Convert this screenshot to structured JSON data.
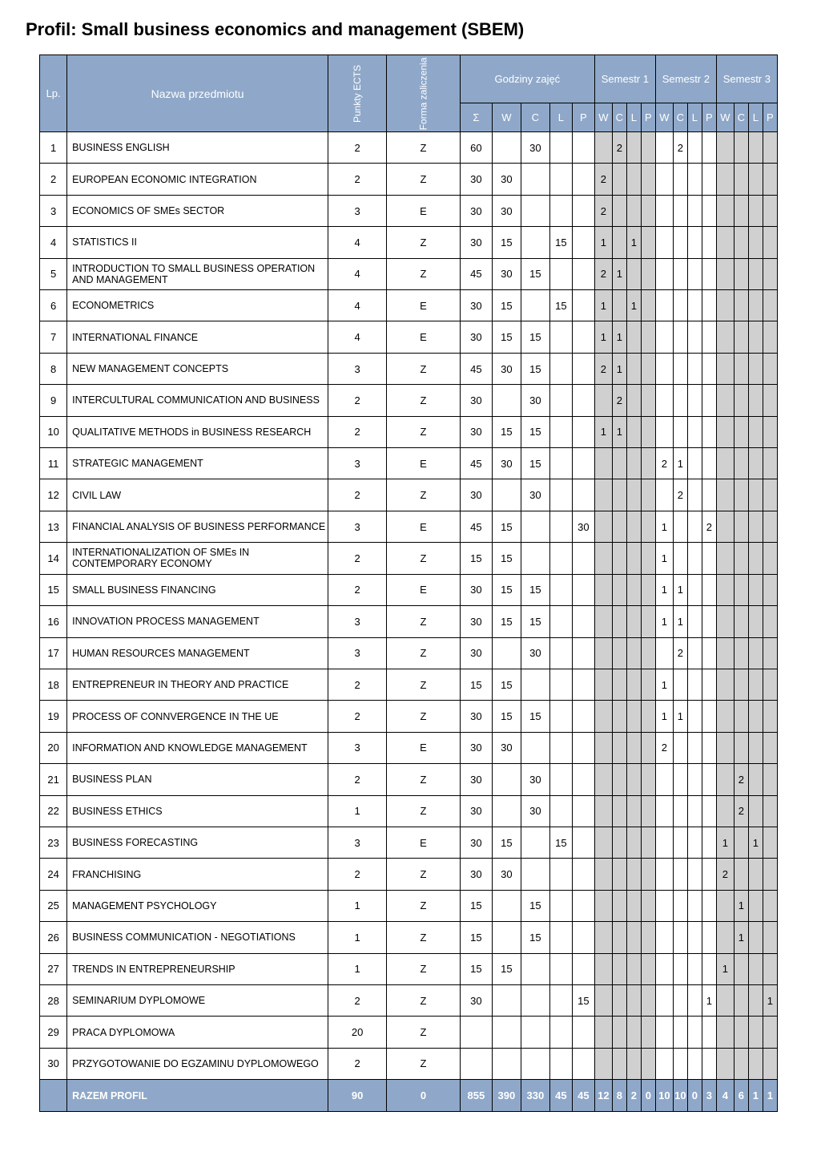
{
  "title": "Profil: Small business economics and management (SBEM)",
  "colors": {
    "header_bg": "#8fa8c9",
    "header_fg": "#ffffff",
    "sem1_bg": "#d0d0d0",
    "border": "#000000",
    "page_bg": "#ffffff"
  },
  "header": {
    "lp": "Lp.",
    "name": "Nazwa przedmiotu",
    "ects": "Punkty\nECTS",
    "form": "Forma\nzaliczenia",
    "hours": "Godziny zajęć",
    "sem1": "Semestr 1",
    "sem2": "Semestr 2",
    "sem3": "Semestr 3",
    "sub": {
      "S": "Σ",
      "W": "W",
      "C": "C",
      "L": "L",
      "P": "P"
    }
  },
  "rows": [
    {
      "lp": "1",
      "name": "BUSINESS ENGLISH",
      "ects": "2",
      "form": "Z",
      "g": {
        "S": "60",
        "W": "",
        "C": "30",
        "L": "",
        "P": ""
      },
      "s1": {
        "W": "",
        "C": "2",
        "L": "",
        "P": ""
      },
      "s2": {
        "W": "",
        "C": "2",
        "L": "",
        "P": ""
      },
      "s3": {
        "W": "",
        "C": "",
        "L": "",
        "P": ""
      }
    },
    {
      "lp": "2",
      "name": "EUROPEAN ECONOMIC INTEGRATION",
      "ects": "2",
      "form": "Z",
      "g": {
        "S": "30",
        "W": "30",
        "C": "",
        "L": "",
        "P": ""
      },
      "s1": {
        "W": "2",
        "C": "",
        "L": "",
        "P": ""
      },
      "s2": {
        "W": "",
        "C": "",
        "L": "",
        "P": ""
      },
      "s3": {
        "W": "",
        "C": "",
        "L": "",
        "P": ""
      }
    },
    {
      "lp": "3",
      "name": "ECONOMICS OF SMEs SECTOR",
      "ects": "3",
      "form": "E",
      "g": {
        "S": "30",
        "W": "30",
        "C": "",
        "L": "",
        "P": ""
      },
      "s1": {
        "W": "2",
        "C": "",
        "L": "",
        "P": ""
      },
      "s2": {
        "W": "",
        "C": "",
        "L": "",
        "P": ""
      },
      "s3": {
        "W": "",
        "C": "",
        "L": "",
        "P": ""
      }
    },
    {
      "lp": "4",
      "name": "STATISTICS II",
      "ects": "4",
      "form": "Z",
      "g": {
        "S": "30",
        "W": "15",
        "C": "",
        "L": "15",
        "P": ""
      },
      "s1": {
        "W": "1",
        "C": "",
        "L": "1",
        "P": ""
      },
      "s2": {
        "W": "",
        "C": "",
        "L": "",
        "P": ""
      },
      "s3": {
        "W": "",
        "C": "",
        "L": "",
        "P": ""
      }
    },
    {
      "lp": "5",
      "name": "INTRODUCTION TO SMALL BUSINESS OPERATION AND MANAGEMENT",
      "ects": "4",
      "form": "Z",
      "g": {
        "S": "45",
        "W": "30",
        "C": "15",
        "L": "",
        "P": ""
      },
      "s1": {
        "W": "2",
        "C": "1",
        "L": "",
        "P": ""
      },
      "s2": {
        "W": "",
        "C": "",
        "L": "",
        "P": ""
      },
      "s3": {
        "W": "",
        "C": "",
        "L": "",
        "P": ""
      }
    },
    {
      "lp": "6",
      "name": "ECONOMETRICS",
      "ects": "4",
      "form": "E",
      "g": {
        "S": "30",
        "W": "15",
        "C": "",
        "L": "15",
        "P": ""
      },
      "s1": {
        "W": "1",
        "C": "",
        "L": "1",
        "P": ""
      },
      "s2": {
        "W": "",
        "C": "",
        "L": "",
        "P": ""
      },
      "s3": {
        "W": "",
        "C": "",
        "L": "",
        "P": ""
      }
    },
    {
      "lp": "7",
      "name": "INTERNATIONAL FINANCE",
      "ects": "4",
      "form": "E",
      "g": {
        "S": "30",
        "W": "15",
        "C": "15",
        "L": "",
        "P": ""
      },
      "s1": {
        "W": "1",
        "C": "1",
        "L": "",
        "P": ""
      },
      "s2": {
        "W": "",
        "C": "",
        "L": "",
        "P": ""
      },
      "s3": {
        "W": "",
        "C": "",
        "L": "",
        "P": ""
      }
    },
    {
      "lp": "8",
      "name": "NEW MANAGEMENT CONCEPTS",
      "ects": "3",
      "form": "Z",
      "g": {
        "S": "45",
        "W": "30",
        "C": "15",
        "L": "",
        "P": ""
      },
      "s1": {
        "W": "2",
        "C": "1",
        "L": "",
        "P": ""
      },
      "s2": {
        "W": "",
        "C": "",
        "L": "",
        "P": ""
      },
      "s3": {
        "W": "",
        "C": "",
        "L": "",
        "P": ""
      }
    },
    {
      "lp": "9",
      "name": "INTERCULTURAL COMMUNICATION AND BUSINESS",
      "ects": "2",
      "form": "Z",
      "g": {
        "S": "30",
        "W": "",
        "C": "30",
        "L": "",
        "P": ""
      },
      "s1": {
        "W": "",
        "C": "2",
        "L": "",
        "P": ""
      },
      "s2": {
        "W": "",
        "C": "",
        "L": "",
        "P": ""
      },
      "s3": {
        "W": "",
        "C": "",
        "L": "",
        "P": ""
      }
    },
    {
      "lp": "10",
      "name": "QUALITATIVE METHODS in BUSINESS RESEARCH",
      "ects": "2",
      "form": "Z",
      "g": {
        "S": "30",
        "W": "15",
        "C": "15",
        "L": "",
        "P": ""
      },
      "s1": {
        "W": "1",
        "C": "1",
        "L": "",
        "P": ""
      },
      "s2": {
        "W": "",
        "C": "",
        "L": "",
        "P": ""
      },
      "s3": {
        "W": "",
        "C": "",
        "L": "",
        "P": ""
      }
    },
    {
      "lp": "11",
      "name": "STRATEGIC MANAGEMENT",
      "ects": "3",
      "form": "E",
      "g": {
        "S": "45",
        "W": "30",
        "C": "15",
        "L": "",
        "P": ""
      },
      "s1": {
        "W": "",
        "C": "",
        "L": "",
        "P": ""
      },
      "s2": {
        "W": "2",
        "C": "1",
        "L": "",
        "P": ""
      },
      "s3": {
        "W": "",
        "C": "",
        "L": "",
        "P": ""
      }
    },
    {
      "lp": "12",
      "name": "CIVIL LAW",
      "ects": "2",
      "form": "Z",
      "g": {
        "S": "30",
        "W": "",
        "C": "30",
        "L": "",
        "P": ""
      },
      "s1": {
        "W": "",
        "C": "",
        "L": "",
        "P": ""
      },
      "s2": {
        "W": "",
        "C": "2",
        "L": "",
        "P": ""
      },
      "s3": {
        "W": "",
        "C": "",
        "L": "",
        "P": ""
      }
    },
    {
      "lp": "13",
      "name": "FINANCIAL ANALYSIS OF BUSINESS PERFORMANCE",
      "ects": "3",
      "form": "E",
      "g": {
        "S": "45",
        "W": "15",
        "C": "",
        "L": "",
        "P": "30"
      },
      "s1": {
        "W": "",
        "C": "",
        "L": "",
        "P": ""
      },
      "s2": {
        "W": "1",
        "C": "",
        "L": "",
        "P": "2"
      },
      "s3": {
        "W": "",
        "C": "",
        "L": "",
        "P": ""
      }
    },
    {
      "lp": "14",
      "name": "INTERNATIONALIZATION OF SMEs IN CONTEMPORARY ECONOMY",
      "ects": "2",
      "form": "Z",
      "g": {
        "S": "15",
        "W": "15",
        "C": "",
        "L": "",
        "P": ""
      },
      "s1": {
        "W": "",
        "C": "",
        "L": "",
        "P": ""
      },
      "s2": {
        "W": "1",
        "C": "",
        "L": "",
        "P": ""
      },
      "s3": {
        "W": "",
        "C": "",
        "L": "",
        "P": ""
      }
    },
    {
      "lp": "15",
      "name": "SMALL BUSINESS FINANCING",
      "ects": "2",
      "form": "E",
      "g": {
        "S": "30",
        "W": "15",
        "C": "15",
        "L": "",
        "P": ""
      },
      "s1": {
        "W": "",
        "C": "",
        "L": "",
        "P": ""
      },
      "s2": {
        "W": "1",
        "C": "1",
        "L": "",
        "P": ""
      },
      "s3": {
        "W": "",
        "C": "",
        "L": "",
        "P": ""
      }
    },
    {
      "lp": "16",
      "name": "INNOVATION PROCESS MANAGEMENT",
      "ects": "3",
      "form": "Z",
      "g": {
        "S": "30",
        "W": "15",
        "C": "15",
        "L": "",
        "P": ""
      },
      "s1": {
        "W": "",
        "C": "",
        "L": "",
        "P": ""
      },
      "s2": {
        "W": "1",
        "C": "1",
        "L": "",
        "P": ""
      },
      "s3": {
        "W": "",
        "C": "",
        "L": "",
        "P": ""
      }
    },
    {
      "lp": "17",
      "name": "HUMAN RESOURCES MANAGEMENT",
      "ects": "3",
      "form": "Z",
      "g": {
        "S": "30",
        "W": "",
        "C": "30",
        "L": "",
        "P": ""
      },
      "s1": {
        "W": "",
        "C": "",
        "L": "",
        "P": ""
      },
      "s2": {
        "W": "",
        "C": "2",
        "L": "",
        "P": ""
      },
      "s3": {
        "W": "",
        "C": "",
        "L": "",
        "P": ""
      }
    },
    {
      "lp": "18",
      "name": "ENTREPRENEUR IN THEORY AND PRACTICE",
      "ects": "2",
      "form": "Z",
      "g": {
        "S": "15",
        "W": "15",
        "C": "",
        "L": "",
        "P": ""
      },
      "s1": {
        "W": "",
        "C": "",
        "L": "",
        "P": ""
      },
      "s2": {
        "W": "1",
        "C": "",
        "L": "",
        "P": ""
      },
      "s3": {
        "W": "",
        "C": "",
        "L": "",
        "P": ""
      }
    },
    {
      "lp": "19",
      "name": "PROCESS OF CONNVERGENCE IN THE UE",
      "ects": "2",
      "form": "Z",
      "g": {
        "S": "30",
        "W": "15",
        "C": "15",
        "L": "",
        "P": ""
      },
      "s1": {
        "W": "",
        "C": "",
        "L": "",
        "P": ""
      },
      "s2": {
        "W": "1",
        "C": "1",
        "L": "",
        "P": ""
      },
      "s3": {
        "W": "",
        "C": "",
        "L": "",
        "P": ""
      }
    },
    {
      "lp": "20",
      "name": "INFORMATION AND KNOWLEDGE MANAGEMENT",
      "ects": "3",
      "form": "E",
      "g": {
        "S": "30",
        "W": "30",
        "C": "",
        "L": "",
        "P": ""
      },
      "s1": {
        "W": "",
        "C": "",
        "L": "",
        "P": ""
      },
      "s2": {
        "W": "2",
        "C": "",
        "L": "",
        "P": ""
      },
      "s3": {
        "W": "",
        "C": "",
        "L": "",
        "P": ""
      }
    },
    {
      "lp": "21",
      "name": "BUSINESS PLAN",
      "ects": "2",
      "form": "Z",
      "g": {
        "S": "30",
        "W": "",
        "C": "30",
        "L": "",
        "P": ""
      },
      "s1": {
        "W": "",
        "C": "",
        "L": "",
        "P": ""
      },
      "s2": {
        "W": "",
        "C": "",
        "L": "",
        "P": ""
      },
      "s3": {
        "W": "",
        "C": "2",
        "L": "",
        "P": ""
      }
    },
    {
      "lp": "22",
      "name": "BUSINESS ETHICS",
      "ects": "1",
      "form": "Z",
      "g": {
        "S": "30",
        "W": "",
        "C": "30",
        "L": "",
        "P": ""
      },
      "s1": {
        "W": "",
        "C": "",
        "L": "",
        "P": ""
      },
      "s2": {
        "W": "",
        "C": "",
        "L": "",
        "P": ""
      },
      "s3": {
        "W": "",
        "C": "2",
        "L": "",
        "P": ""
      }
    },
    {
      "lp": "23",
      "name": "BUSINESS FORECASTING",
      "ects": "3",
      "form": "E",
      "g": {
        "S": "30",
        "W": "15",
        "C": "",
        "L": "15",
        "P": ""
      },
      "s1": {
        "W": "",
        "C": "",
        "L": "",
        "P": ""
      },
      "s2": {
        "W": "",
        "C": "",
        "L": "",
        "P": ""
      },
      "s3": {
        "W": "1",
        "C": "",
        "L": "1",
        "P": ""
      }
    },
    {
      "lp": "24",
      "name": "FRANCHISING",
      "ects": "2",
      "form": "Z",
      "g": {
        "S": "30",
        "W": "30",
        "C": "",
        "L": "",
        "P": ""
      },
      "s1": {
        "W": "",
        "C": "",
        "L": "",
        "P": ""
      },
      "s2": {
        "W": "",
        "C": "",
        "L": "",
        "P": ""
      },
      "s3": {
        "W": "2",
        "C": "",
        "L": "",
        "P": ""
      }
    },
    {
      "lp": "25",
      "name": "MANAGEMENT PSYCHOLOGY",
      "ects": "1",
      "form": "Z",
      "g": {
        "S": "15",
        "W": "",
        "C": "15",
        "L": "",
        "P": ""
      },
      "s1": {
        "W": "",
        "C": "",
        "L": "",
        "P": ""
      },
      "s2": {
        "W": "",
        "C": "",
        "L": "",
        "P": ""
      },
      "s3": {
        "W": "",
        "C": "1",
        "L": "",
        "P": ""
      }
    },
    {
      "lp": "26",
      "name": "BUSINESS COMMUNICATION - NEGOTIATIONS",
      "ects": "1",
      "form": "Z",
      "g": {
        "S": "15",
        "W": "",
        "C": "15",
        "L": "",
        "P": ""
      },
      "s1": {
        "W": "",
        "C": "",
        "L": "",
        "P": ""
      },
      "s2": {
        "W": "",
        "C": "",
        "L": "",
        "P": ""
      },
      "s3": {
        "W": "",
        "C": "1",
        "L": "",
        "P": ""
      }
    },
    {
      "lp": "27",
      "name": "TRENDS IN ENTREPRENEURSHIP",
      "ects": "1",
      "form": "Z",
      "g": {
        "S": "15",
        "W": "15",
        "C": "",
        "L": "",
        "P": ""
      },
      "s1": {
        "W": "",
        "C": "",
        "L": "",
        "P": ""
      },
      "s2": {
        "W": "",
        "C": "",
        "L": "",
        "P": ""
      },
      "s3": {
        "W": "1",
        "C": "",
        "L": "",
        "P": ""
      }
    },
    {
      "lp": "28",
      "name": "SEMINARIUM DYPLOMOWE",
      "ects": "2",
      "form": "Z",
      "g": {
        "S": "30",
        "W": "",
        "C": "",
        "L": "",
        "P": "15"
      },
      "s1": {
        "W": "",
        "C": "",
        "L": "",
        "P": ""
      },
      "s2": {
        "W": "",
        "C": "",
        "L": "",
        "P": "1"
      },
      "s3": {
        "W": "",
        "C": "",
        "L": "",
        "P": "1"
      }
    },
    {
      "lp": "29",
      "name": "PRACA DYPLOMOWA",
      "ects": "20",
      "form": "Z",
      "g": {
        "S": "",
        "W": "",
        "C": "",
        "L": "",
        "P": ""
      },
      "s1": {
        "W": "",
        "C": "",
        "L": "",
        "P": ""
      },
      "s2": {
        "W": "",
        "C": "",
        "L": "",
        "P": ""
      },
      "s3": {
        "W": "",
        "C": "",
        "L": "",
        "P": ""
      }
    },
    {
      "lp": "30",
      "name": "PRZYGOTOWANIE DO EGZAMINU DYPLOMOWEGO",
      "ects": "2",
      "form": "Z",
      "g": {
        "S": "",
        "W": "",
        "C": "",
        "L": "",
        "P": ""
      },
      "s1": {
        "W": "",
        "C": "",
        "L": "",
        "P": ""
      },
      "s2": {
        "W": "",
        "C": "",
        "L": "",
        "P": ""
      },
      "s3": {
        "W": "",
        "C": "",
        "L": "",
        "P": ""
      }
    }
  ],
  "footer": {
    "label": "RAZEM PROFIL",
    "ects": "90",
    "form": "0",
    "g": {
      "S": "855",
      "W": "390",
      "C": "330",
      "L": "45",
      "P": "45"
    },
    "s1": {
      "W": "12",
      "C": "8",
      "L": "2",
      "P": "0"
    },
    "s2": {
      "W": "10",
      "C": "10",
      "L": "0",
      "P": "3"
    },
    "s3": {
      "W": "4",
      "C": "6",
      "L": "1",
      "P": "1"
    }
  }
}
